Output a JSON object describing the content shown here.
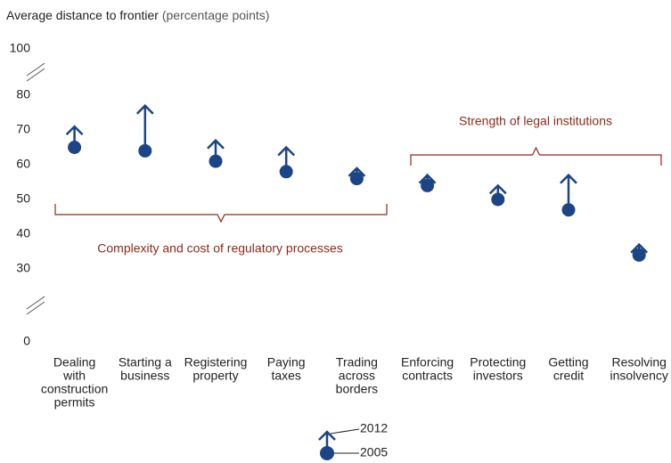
{
  "chart_data": {
    "type": "dot-arrow",
    "title": "Average distance to frontier",
    "subtitle": "(percentage points)",
    "categories": [
      [
        "Dealing",
        "with",
        "construction",
        "permits"
      ],
      [
        "Starting a",
        "business"
      ],
      [
        "Registering",
        "property"
      ],
      [
        "Paying",
        "taxes"
      ],
      [
        "Trading",
        "across",
        "borders"
      ],
      [
        "Enforcing",
        "contracts"
      ],
      [
        "Protecting",
        "investors"
      ],
      [
        "Getting",
        "credit"
      ],
      [
        "Resolving",
        "insolvency"
      ]
    ],
    "series": [
      {
        "name": "2005",
        "color": "#1c4585",
        "values": [
          65,
          64,
          61,
          58,
          56,
          54,
          50,
          47,
          34
        ]
      },
      {
        "name": "2012",
        "color": "#1c4585",
        "values": [
          71,
          77,
          67,
          65,
          59,
          57,
          54,
          57,
          37
        ]
      }
    ],
    "ylim": [
      0,
      100
    ],
    "yticks": [
      0,
      30,
      40,
      50,
      60,
      70,
      80,
      100
    ],
    "axis_breaks": [
      [
        0,
        30
      ],
      [
        80,
        100
      ]
    ],
    "groups": [
      "Complexity and cost of regulatory processes",
      "Strength of legal institutions"
    ]
  }
}
